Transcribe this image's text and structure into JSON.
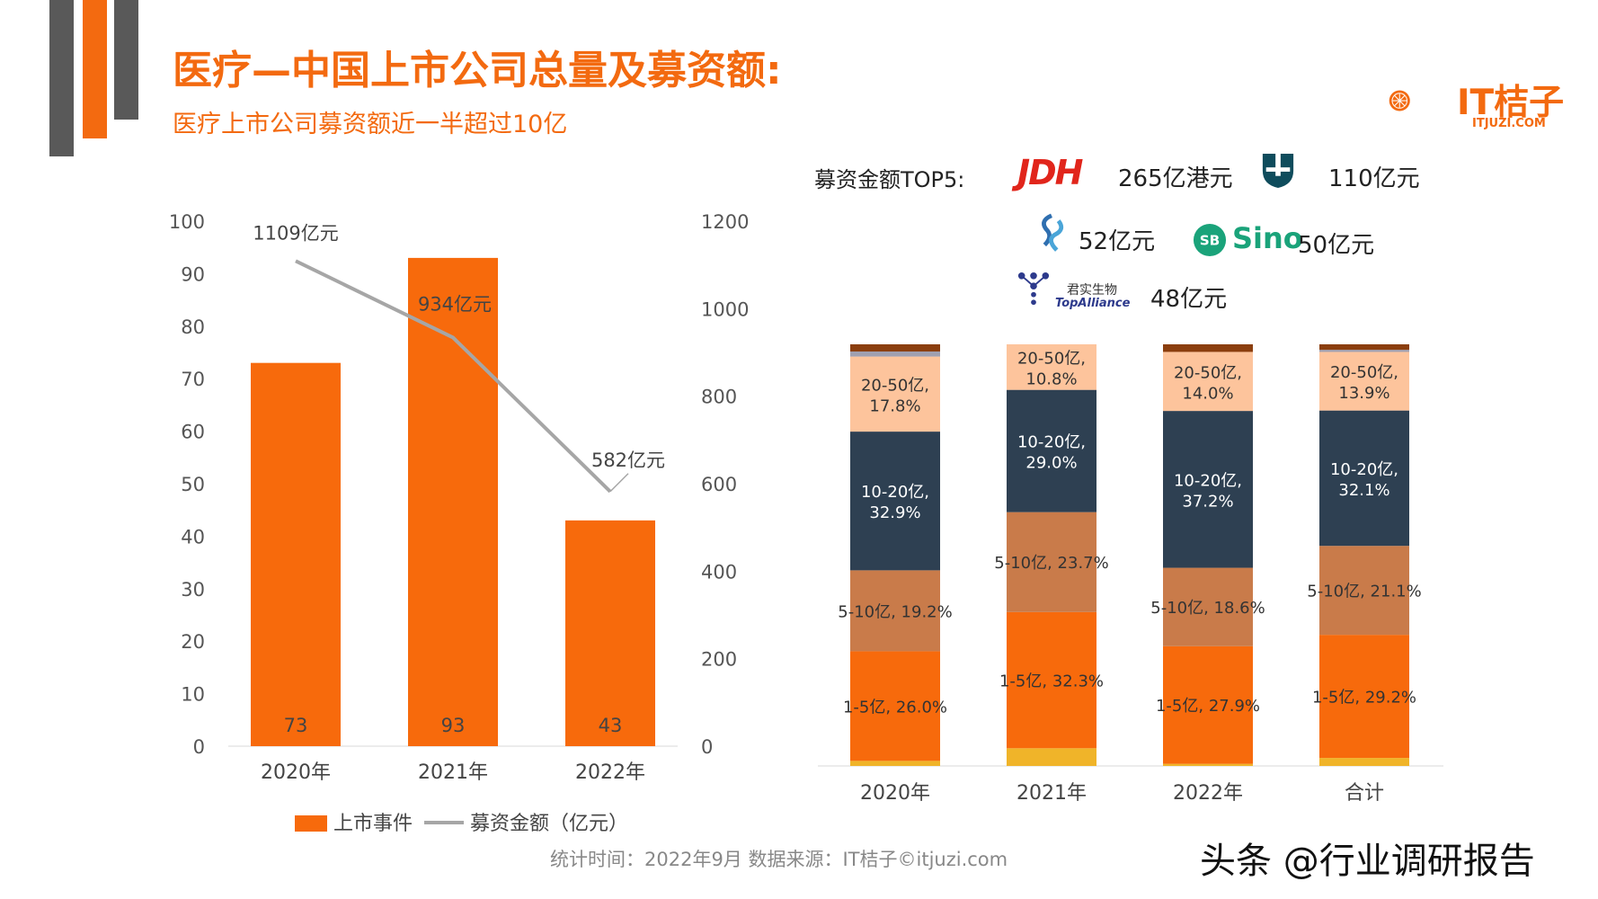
{
  "title": "医疗—中国上市公司总量及募资额:",
  "subtitle": "医疗上市公司募资额近一半超过10亿",
  "brand": {
    "name": "IT桔子",
    "url": "ITJUZI.COM",
    "color": "#f36a10"
  },
  "top5": {
    "label": "募资金额TOP5:",
    "items": [
      {
        "logo": "JDH",
        "value": "265亿港元"
      },
      {
        "logo": "shield-logo",
        "value": "110亿元"
      },
      {
        "logo": "swirl-logo",
        "value": "52亿元"
      },
      {
        "logo": "Sino",
        "value": "50亿元"
      },
      {
        "logo": "TopAlliance",
        "logo_text": "君实生物",
        "value": "48亿元"
      }
    ]
  },
  "chart_data": [
    {
      "type": "bar",
      "categories": [
        "2020年",
        "2021年",
        "2022年"
      ],
      "series": [
        {
          "name": "上市事件",
          "type": "bar",
          "axis": "left",
          "values": [
            73,
            93,
            43
          ],
          "labels": [
            "73",
            "93",
            "43"
          ],
          "color": "#f76a0c"
        },
        {
          "name": "募资金额（亿元）",
          "type": "line",
          "axis": "right",
          "values": [
            1109,
            934,
            582
          ],
          "labels": [
            "1109亿元",
            "934亿元",
            "582亿元"
          ],
          "color": "#a6a6a6"
        }
      ],
      "ylim_left": [
        0,
        100
      ],
      "yticks_left": [
        "0",
        "10",
        "20",
        "30",
        "40",
        "50",
        "60",
        "70",
        "80",
        "90",
        "100"
      ],
      "ylim_right": [
        0,
        1200
      ],
      "yticks_right": [
        "0",
        "200",
        "400",
        "600",
        "800",
        "1000",
        "1200"
      ],
      "legend_position": "bottom"
    },
    {
      "type": "bar",
      "stacked": true,
      "normalized": true,
      "categories": [
        "2020年",
        "2021年",
        "2022年",
        "合计"
      ],
      "series": [
        {
          "name": "segment-1",
          "values": [
            1.2,
            4.2,
            0.5,
            1.9
          ],
          "color": "#f0b429"
        },
        {
          "name": "1-5亿",
          "values": [
            26.0,
            32.3,
            27.9,
            29.2
          ],
          "labels": [
            "1-5亿, 26.0%",
            "1-5亿, 32.3%",
            "1-5亿, 27.9%",
            "1-5亿, 29.2%"
          ],
          "color": "#f76a0c"
        },
        {
          "name": "5-10亿",
          "values": [
            19.2,
            23.7,
            18.6,
            21.1
          ],
          "labels": [
            "5-10亿, 19.2%",
            "5-10亿, 23.7%",
            "5-10亿, 18.6%",
            "5-10亿, 21.1%"
          ],
          "color": "#c97b4a"
        },
        {
          "name": "10-20亿",
          "values": [
            32.9,
            29.0,
            37.2,
            32.1
          ],
          "labels": [
            "10-20亿,",
            "10-20亿,",
            "10-20亿,",
            "10-20亿,"
          ],
          "labels2": [
            "32.9%",
            "29.0%",
            "37.2%",
            "32.1%"
          ],
          "color": "#2e4052"
        },
        {
          "name": "20-50亿",
          "values": [
            17.8,
            10.8,
            14.0,
            13.9
          ],
          "labels": [
            "20-50亿,",
            "20-50亿,",
            "20-50亿,",
            "20-50亿,"
          ],
          "labels2": [
            "17.8%",
            "10.8%",
            "14.0%",
            "13.9%"
          ],
          "color": "#fdc49c"
        },
        {
          "name": "segment-6",
          "values": [
            1.2,
            0,
            0,
            0.5
          ],
          "color": "#a0a0b0"
        },
        {
          "name": "segment-7",
          "values": [
            1.7,
            0,
            1.8,
            1.3
          ],
          "color": "#8b3e0e"
        }
      ]
    }
  ],
  "footer": "统计时间：2022年9月  数据来源：IT桔子©itjuzi.com",
  "watermark": "头条 @行业调研报告"
}
